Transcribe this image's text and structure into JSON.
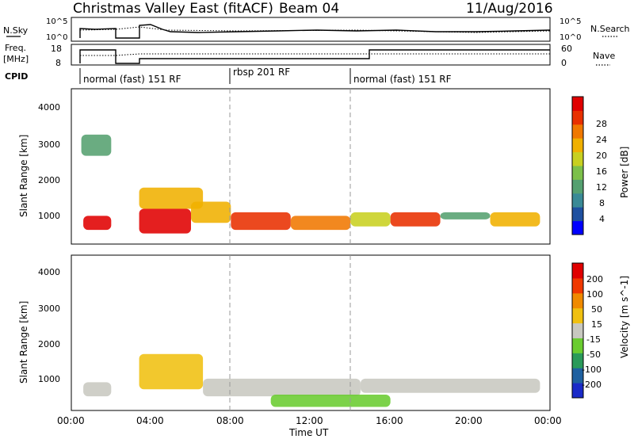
{
  "header": {
    "title": "Christmas Valley East (fitACF)",
    "beam": "Beam 04",
    "date": "11/Aug/2016"
  },
  "left_labels": {
    "nsky": "N.Sky",
    "freq_1": "Freq.",
    "freq_2": "[MHz]",
    "cpid": "CPID"
  },
  "right_labels": {
    "nsearch": "N.Search",
    "nave": "Nave"
  },
  "noise_panel": {
    "left_ticks": [
      "10^5",
      "10^0"
    ],
    "right_ticks": [
      "10^5",
      "10^0"
    ]
  },
  "freq_panel": {
    "left_ticks": [
      "18",
      "8"
    ],
    "right_ticks": [
      "60",
      "0"
    ]
  },
  "cpid_segments": [
    {
      "label": "normal (fast) 151 RF"
    },
    {
      "label": "rbsp 201 RF"
    },
    {
      "label": "normal (fast) 151 RF"
    }
  ],
  "power_panel": {
    "ylabel": "Slant Range [km]",
    "yticks": [
      "4000",
      "3000",
      "2000",
      "1000"
    ],
    "colorbar_label": "Power [dB]",
    "colorbar_ticks": [
      "28",
      "24",
      "20",
      "16",
      "12",
      "8",
      "4"
    ],
    "colors": [
      "#0000ff",
      "#1e50a0",
      "#3a8a96",
      "#55a070",
      "#7cc04a",
      "#c8d020",
      "#f0b000",
      "#f07800",
      "#e83000",
      "#e00000"
    ]
  },
  "velocity_panel": {
    "ylabel": "Slant Range [km]",
    "yticks": [
      "4000",
      "3000",
      "2000",
      "1000"
    ],
    "colorbar_label": "Velocity [m s^-1]",
    "colorbar_ticks": [
      "200",
      "100",
      "50",
      "15",
      "-15",
      "-50",
      "-100",
      "-200"
    ],
    "colors": [
      "#1a2ac8",
      "#1e60a0",
      "#2a9a5a",
      "#6acc30",
      "#c8c8c0",
      "#f0c010",
      "#f08a00",
      "#f03800",
      "#e00000"
    ]
  },
  "x_axis": {
    "label": "Time UT",
    "ticks": [
      "00:00",
      "04:00",
      "08:00",
      "12:00",
      "16:00",
      "20:00",
      "00:00"
    ]
  },
  "chart_data": {
    "type": "heatmap",
    "title": "Christmas Valley East (fitACF)",
    "xlabel": "Time UT",
    "ylabel": "Slant Range [km]",
    "xlim": [
      0,
      24
    ],
    "ylim": [
      200,
      4600
    ],
    "beam": "Beam 04",
    "date": "11/Aug/2016",
    "series": [
      {
        "name": "Power [dB]",
        "clim": [
          0,
          32
        ],
        "regions": [
          {
            "t": [
              0.6,
              2.0
            ],
            "r": [
              600,
              1000
            ],
            "value": 30
          },
          {
            "t": [
              0.5,
              2.0
            ],
            "r": [
              2700,
              3300
            ],
            "value": 11
          },
          {
            "t": [
              3.4,
              6.0
            ],
            "r": [
              500,
              1200
            ],
            "value": 30
          },
          {
            "t": [
              3.4,
              6.6
            ],
            "r": [
              1200,
              1800
            ],
            "value": 20
          },
          {
            "t": [
              6.0,
              8.0
            ],
            "r": [
              800,
              1400
            ],
            "value": 22
          },
          {
            "t": [
              8.0,
              11.0
            ],
            "r": [
              600,
              1100
            ],
            "value": 28
          },
          {
            "t": [
              11.0,
              14.0
            ],
            "r": [
              600,
              1000
            ],
            "value": 24
          },
          {
            "t": [
              14.0,
              16.0
            ],
            "r": [
              700,
              1100
            ],
            "value": 18
          },
          {
            "t": [
              16.0,
              18.5
            ],
            "r": [
              700,
              1100
            ],
            "value": 26
          },
          {
            "t": [
              18.5,
              21.0
            ],
            "r": [
              900,
              1100
            ],
            "value": 12
          },
          {
            "t": [
              21.0,
              23.5
            ],
            "r": [
              700,
              1100
            ],
            "value": 22
          }
        ]
      },
      {
        "name": "Velocity [m s^-1]",
        "clim": [
          -250,
          250
        ],
        "regions": [
          {
            "t": [
              0.6,
              2.0
            ],
            "r": [
              600,
              1000
            ],
            "value": 0
          },
          {
            "t": [
              3.4,
              6.6
            ],
            "r": [
              800,
              1800
            ],
            "value": 60
          },
          {
            "t": [
              6.6,
              14.5
            ],
            "r": [
              600,
              1100
            ],
            "value": 0
          },
          {
            "t": [
              10.0,
              16.0
            ],
            "r": [
              300,
              650
            ],
            "value": -50
          },
          {
            "t": [
              14.5,
              23.5
            ],
            "r": [
              700,
              1100
            ],
            "value": 0
          }
        ]
      }
    ]
  }
}
